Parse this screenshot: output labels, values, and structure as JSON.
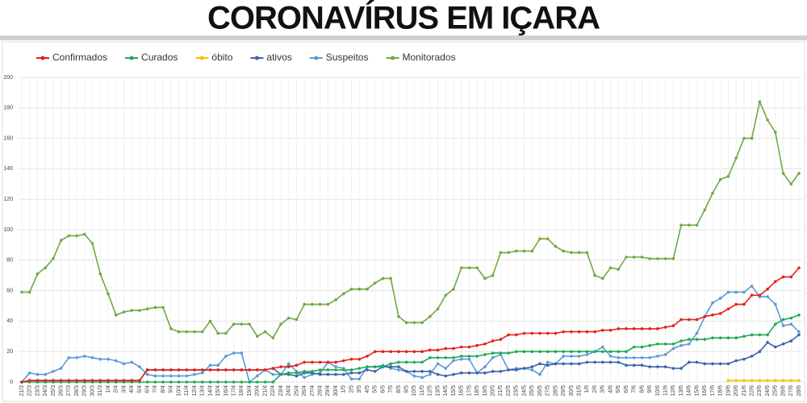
{
  "chart_data": {
    "type": "line",
    "title": "CORONAVÍRUS EM IÇARA",
    "categories": [
      "21/3",
      "22/3",
      "23/3",
      "24/3",
      "25/3",
      "26/3",
      "27/3",
      "28/3",
      "29/3",
      "30/3",
      "31/3",
      "1/4",
      "2/4",
      "3/4",
      "4/4",
      "5/4",
      "6/4",
      "7/4",
      "8/4",
      "9/4",
      "10/4",
      "11/4",
      "12/4",
      "13/4",
      "14/4",
      "15/4",
      "16/4",
      "17/4",
      "18/4",
      "19/4",
      "20/4",
      "21/4",
      "22/4",
      "23/4",
      "24/4",
      "25/4",
      "26/4",
      "27/4",
      "28/4",
      "29/4",
      "30/4",
      "1/5",
      "2/5",
      "3/5",
      "4/5",
      "5/5",
      "6/5",
      "7/5",
      "8/5",
      "9/5",
      "10/5",
      "11/5",
      "12/5",
      "13/5",
      "14/5",
      "15/5",
      "16/5",
      "17/5",
      "18/5",
      "19/5",
      "20/5",
      "21/5",
      "22/5",
      "23/5",
      "24/5",
      "25/5",
      "26/5",
      "27/5",
      "28/5",
      "29/5",
      "30/5",
      "31/5",
      "1/6",
      "2/6",
      "3/6",
      "4/6",
      "5/6",
      "6/6",
      "7/6",
      "8/6",
      "9/6",
      "10/6",
      "11/6",
      "12/6",
      "13/6",
      "14/6",
      "15/6",
      "16/6",
      "17/6",
      "18/6",
      "19/6",
      "20/6",
      "21/6",
      "22/6",
      "23/6",
      "24/6",
      "25/6",
      "26/6",
      "27/6",
      "28/6"
    ],
    "series": [
      {
        "name": "Confirmados",
        "color": "#e3211c",
        "values": [
          0,
          1,
          1,
          1,
          1,
          1,
          1,
          1,
          1,
          1,
          1,
          1,
          1,
          1,
          1,
          1,
          8,
          8,
          8,
          8,
          8,
          8,
          8,
          8,
          8,
          8,
          8,
          8,
          8,
          8,
          8,
          8,
          9,
          10,
          10,
          11,
          13,
          13,
          13,
          13,
          13,
          14,
          15,
          15,
          17,
          20,
          20,
          20,
          20,
          20,
          20,
          20,
          21,
          21,
          22,
          22,
          23,
          23,
          24,
          25,
          27,
          28,
          31,
          31,
          32,
          32,
          32,
          32,
          32,
          33,
          33,
          33,
          33,
          33,
          34,
          34,
          35,
          35,
          35,
          35,
          35,
          35,
          36,
          37,
          41,
          41,
          41,
          43,
          44,
          45,
          48,
          51,
          51,
          57,
          57,
          61,
          66,
          69,
          69,
          75
        ]
      },
      {
        "name": "Curados",
        "color": "#1faa55",
        "values": [
          0,
          0,
          0,
          0,
          0,
          0,
          0,
          0,
          0,
          0,
          0,
          0,
          0,
          0,
          0,
          0,
          0,
          0,
          0,
          0,
          0,
          0,
          0,
          0,
          0,
          0,
          0,
          0,
          0,
          0,
          0,
          0,
          0,
          5,
          6,
          6,
          7,
          7,
          8,
          8,
          8,
          8,
          8,
          9,
          10,
          10,
          10,
          12,
          13,
          13,
          13,
          13,
          16,
          16,
          16,
          16,
          17,
          17,
          17,
          18,
          19,
          19,
          19,
          20,
          20,
          20,
          20,
          20,
          20,
          20,
          20,
          20,
          20,
          20,
          20,
          20,
          20,
          20,
          23,
          23,
          24,
          25,
          25,
          25,
          27,
          28,
          28,
          28,
          29,
          29,
          29,
          29,
          30,
          31,
          31,
          31,
          38,
          41,
          42,
          44
        ]
      },
      {
        "name": "óbito",
        "color": "#f5c000",
        "values": [
          null,
          null,
          null,
          null,
          null,
          null,
          null,
          null,
          null,
          null,
          null,
          null,
          null,
          null,
          null,
          null,
          null,
          null,
          null,
          null,
          null,
          null,
          null,
          null,
          null,
          null,
          null,
          null,
          null,
          null,
          null,
          null,
          null,
          null,
          null,
          null,
          null,
          null,
          null,
          null,
          null,
          null,
          null,
          null,
          null,
          null,
          null,
          null,
          null,
          null,
          null,
          null,
          null,
          null,
          null,
          null,
          null,
          null,
          null,
          null,
          null,
          null,
          null,
          null,
          null,
          null,
          null,
          null,
          null,
          null,
          null,
          null,
          null,
          null,
          null,
          null,
          null,
          null,
          null,
          null,
          null,
          null,
          null,
          null,
          null,
          null,
          null,
          null,
          null,
          null,
          1,
          1,
          1,
          1,
          1,
          1,
          1,
          1,
          1,
          1
        ]
      },
      {
        "name": "ativos",
        "color": "#3a62ad",
        "values": [
          0,
          1,
          1,
          1,
          1,
          1,
          1,
          1,
          1,
          1,
          1,
          1,
          1,
          1,
          1,
          1,
          8,
          8,
          8,
          8,
          8,
          8,
          8,
          8,
          8,
          8,
          8,
          8,
          8,
          8,
          8,
          8,
          9,
          5,
          5,
          4,
          6,
          6,
          5,
          5,
          5,
          5,
          6,
          6,
          8,
          7,
          10,
          10,
          10,
          7,
          7,
          7,
          7,
          5,
          4,
          5,
          6,
          6,
          6,
          6,
          7,
          7,
          8,
          8,
          9,
          10,
          12,
          11,
          12,
          12,
          12,
          12,
          13,
          13,
          13,
          13,
          13,
          11,
          11,
          11,
          10,
          10,
          10,
          9,
          9,
          13,
          13,
          12,
          12,
          12,
          12,
          14,
          15,
          17,
          20,
          26,
          23,
          25,
          27,
          31
        ]
      },
      {
        "name": "Suspeitos",
        "color": "#5b9bd5",
        "values": [
          0,
          6,
          5,
          5,
          7,
          9,
          16,
          16,
          17,
          16,
          15,
          15,
          14,
          12,
          13,
          10,
          5,
          4,
          4,
          4,
          4,
          4,
          5,
          6,
          11,
          11,
          17,
          19,
          19,
          0,
          4,
          8,
          5,
          5,
          12,
          7,
          3,
          5,
          6,
          13,
          10,
          9,
          2,
          2,
          10,
          10,
          11,
          9,
          8,
          7,
          4,
          3,
          5,
          12,
          9,
          14,
          15,
          15,
          6,
          10,
          16,
          18,
          8,
          9,
          9,
          8,
          5,
          13,
          12,
          17,
          17,
          17,
          18,
          20,
          23,
          17,
          16,
          16,
          16,
          16,
          16,
          17,
          18,
          22,
          24,
          25,
          32,
          43,
          52,
          55,
          59,
          59,
          59,
          63,
          56,
          56,
          51,
          37,
          38,
          33
        ]
      },
      {
        "name": "Monitorados",
        "color": "#70a843",
        "values": [
          59,
          59,
          71,
          75,
          81,
          93,
          96,
          96,
          97,
          91,
          71,
          58,
          44,
          46,
          47,
          47,
          48,
          49,
          49,
          35,
          33,
          33,
          33,
          33,
          40,
          32,
          32,
          38,
          38,
          38,
          30,
          33,
          29,
          38,
          42,
          41,
          51,
          51,
          51,
          51,
          54,
          58,
          61,
          61,
          61,
          65,
          68,
          68,
          43,
          39,
          39,
          39,
          43,
          48,
          57,
          61,
          75,
          75,
          75,
          68,
          70,
          85,
          85,
          86,
          86,
          86,
          94,
          94,
          89,
          86,
          85,
          85,
          85,
          70,
          68,
          75,
          74,
          82,
          82,
          82,
          81,
          81,
          81,
          81,
          103,
          103,
          103,
          113,
          124,
          133,
          135,
          147,
          160,
          160,
          184,
          172,
          164,
          137,
          130,
          137
        ]
      }
    ],
    "ylim": [
      0,
      200
    ],
    "yticks": [
      0,
      20,
      40,
      60,
      80,
      100,
      120,
      140,
      160,
      180,
      200
    ],
    "grid": true
  }
}
